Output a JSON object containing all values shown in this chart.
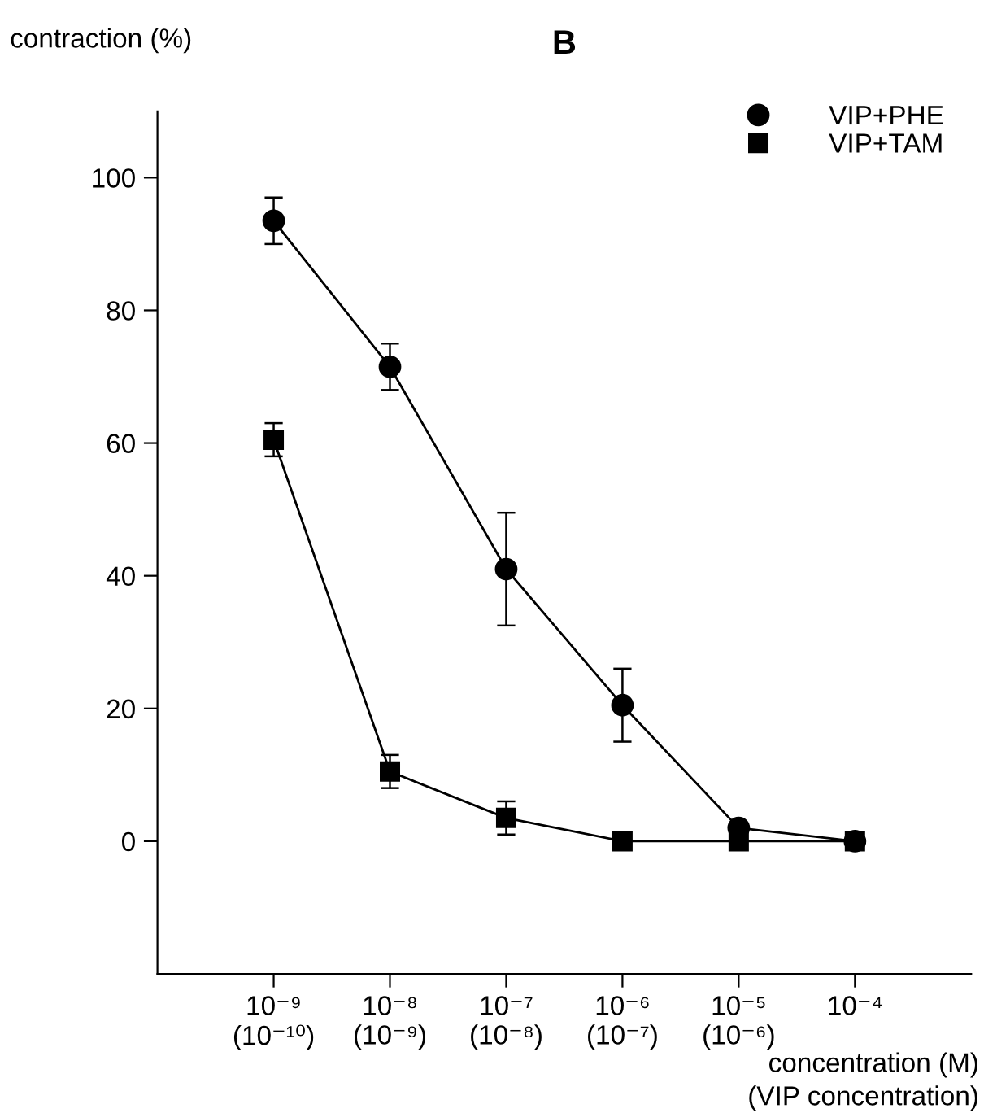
{
  "chart_data": {
    "type": "line",
    "title": "B",
    "ylabel": "contraction (%)",
    "xlabel": "concentration (M)\n(VIP concentration)",
    "categories": [
      "10⁻⁹\n(10⁻¹⁰)",
      "10⁻⁸\n(10⁻⁹)",
      "10⁻⁷\n(10⁻⁸)",
      "10⁻⁶\n(10⁻⁷)",
      "10⁻⁵\n(10⁻⁶)",
      "10⁻⁴"
    ],
    "series": [
      {
        "name": "VIP+PHE",
        "color": "#000000",
        "marker": "circle",
        "values": [
          93.5,
          71.5,
          41,
          20.5,
          2,
          0
        ],
        "errors": [
          3.5,
          3.5,
          8.5,
          5.5,
          null,
          null
        ]
      },
      {
        "name": "VIP+TAM",
        "color": "#000000",
        "marker": "square",
        "values": [
          60.5,
          10.5,
          3.5,
          0,
          0,
          0
        ],
        "errors": [
          2.5,
          2.5,
          2.5,
          null,
          null,
          null
        ]
      }
    ],
    "ylim": [
      -20,
      110
    ],
    "yticks": [
      0,
      20,
      40,
      60,
      80,
      100
    ],
    "grid": false,
    "legend": "top right",
    "line_style": "solid"
  }
}
